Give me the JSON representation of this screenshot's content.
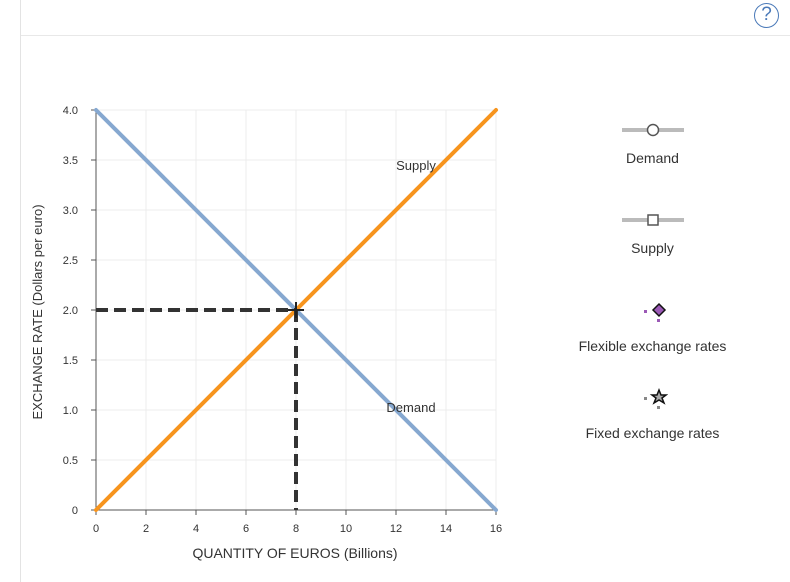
{
  "help_label": "?",
  "chart_data": {
    "type": "line",
    "title": "",
    "xlabel": "QUANTITY OF EUROS (Billions)",
    "ylabel": "EXCHANGE RATE (Dollars per euro)",
    "xlim": [
      0,
      16
    ],
    "ylim": [
      0,
      4.0
    ],
    "x_ticks": [
      0,
      2,
      4,
      6,
      8,
      10,
      12,
      14,
      16
    ],
    "x_tick_labels": [
      "0",
      "2",
      "4",
      "6",
      "8",
      "10",
      "12",
      "14",
      "16"
    ],
    "y_ticks": [
      0,
      0.5,
      1.0,
      1.5,
      2.0,
      2.5,
      3.0,
      3.5,
      4.0
    ],
    "y_tick_labels": [
      "0",
      "0.5",
      "1.0",
      "1.5",
      "2.0",
      "2.5",
      "3.0",
      "3.5",
      "4.0"
    ],
    "grid": true,
    "series": [
      {
        "name": "Demand",
        "color": "#86a8d0",
        "x": [
          0,
          16
        ],
        "y": [
          4.0,
          0
        ]
      },
      {
        "name": "Supply",
        "color": "#f7941d",
        "x": [
          0,
          16
        ],
        "y": [
          0,
          4.0
        ]
      }
    ],
    "annotations": [
      {
        "text": "Supply",
        "x": 12.8,
        "y": 3.4
      },
      {
        "text": "Demand",
        "x": 12.6,
        "y": 0.98
      }
    ],
    "equilibrium": {
      "x": 8,
      "y": 2.0
    }
  },
  "legend": [
    {
      "label": "Demand",
      "icon": "circle-line-icon",
      "color": "#bbbbbb"
    },
    {
      "label": "Supply",
      "icon": "square-line-icon",
      "color": "#bbbbbb"
    },
    {
      "label": "Flexible exchange rates",
      "icon": "diamond-icon",
      "color": "#9b59b6"
    },
    {
      "label": "Fixed exchange rates",
      "icon": "star-icon",
      "color": "#888888"
    }
  ]
}
